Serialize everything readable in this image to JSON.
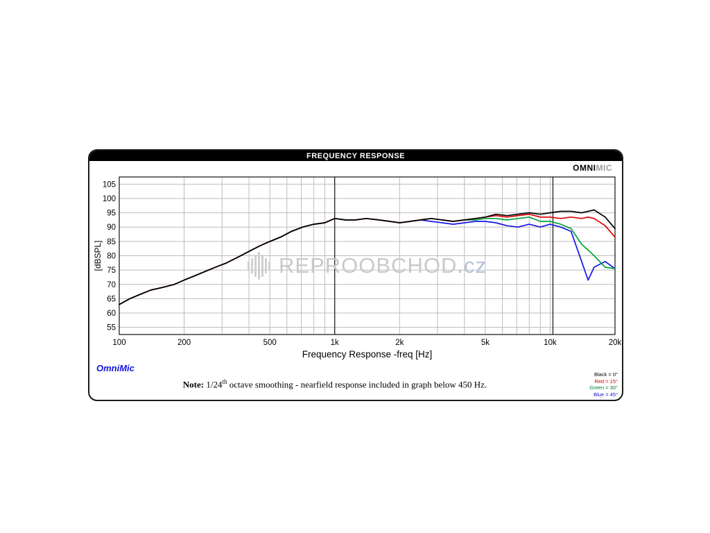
{
  "panel": {
    "title": "FREQUENCY RESPONSE",
    "brand": {
      "part1": "OMNI",
      "part2": "MIC"
    },
    "footer": {
      "app_name": "OmniMic",
      "note_label": "Note:",
      "note_pre": " 1/24",
      "note_sup": "th",
      "note_post": " octave smoothing - nearfield response included in graph below 450 Hz."
    }
  },
  "watermark": {
    "text": "REPROOBCHOD",
    "suffix": ".cz"
  },
  "chart_data": {
    "type": "line",
    "title": "FREQUENCY RESPONSE",
    "xlabel": "Frequency Response -freq [Hz]",
    "ylabel": "[dBSPL]",
    "x_scale": "log",
    "xlim": [
      100,
      20000
    ],
    "ylim": [
      52.5,
      107.5
    ],
    "grid": true,
    "legend_position": "bottom-right",
    "y_ticks": [
      55,
      60,
      65,
      70,
      75,
      80,
      85,
      90,
      95,
      100,
      105
    ],
    "x_ticks": [
      {
        "value": 100,
        "label": "100"
      },
      {
        "value": 200,
        "label": "200"
      },
      {
        "value": 500,
        "label": "500"
      },
      {
        "value": 1000,
        "label": "1k"
      },
      {
        "value": 2000,
        "label": "2k"
      },
      {
        "value": 5000,
        "label": "5k"
      },
      {
        "value": 10000,
        "label": "10k"
      },
      {
        "value": 20000,
        "label": "20k"
      }
    ],
    "x_minor_gridlines": [
      100,
      200,
      300,
      400,
      500,
      600,
      700,
      800,
      900,
      1000,
      2000,
      3000,
      4000,
      5000,
      6000,
      7000,
      8000,
      9000,
      10000,
      20000
    ],
    "cursor_lines": [
      1000,
      10300
    ],
    "frequencies": [
      100,
      112,
      125,
      140,
      160,
      180,
      200,
      224,
      250,
      280,
      315,
      355,
      400,
      450,
      500,
      560,
      630,
      710,
      800,
      900,
      1000,
      1120,
      1250,
      1400,
      1600,
      1800,
      2000,
      2240,
      2500,
      2800,
      3150,
      3550,
      4000,
      4500,
      5000,
      5600,
      6300,
      7100,
      8000,
      9000,
      10000,
      11200,
      12500,
      14000,
      15000,
      16000,
      18000,
      20000
    ],
    "series": [
      {
        "name": "Black = 0°",
        "angle": "0°",
        "color": "#000000",
        "values": [
          63.0,
          65.0,
          66.5,
          68.0,
          69.0,
          70.0,
          71.5,
          73.0,
          74.5,
          76.0,
          77.5,
          79.5,
          81.5,
          83.5,
          85.0,
          86.5,
          88.5,
          90.0,
          91.0,
          91.5,
          93.0,
          92.5,
          92.5,
          93.0,
          92.5,
          92.0,
          91.5,
          92.0,
          92.5,
          93.0,
          92.5,
          92.0,
          92.5,
          93.0,
          93.5,
          94.5,
          94.0,
          94.5,
          95.0,
          94.5,
          95.0,
          95.5,
          95.5,
          95.0,
          95.5,
          96.0,
          93.5,
          89.5
        ]
      },
      {
        "name": "Red = 15°",
        "angle": "15°",
        "color": "#dd0000",
        "values": [
          63.0,
          65.0,
          66.5,
          68.0,
          69.0,
          70.0,
          71.5,
          73.0,
          74.5,
          76.0,
          77.5,
          79.5,
          81.5,
          83.5,
          85.0,
          86.5,
          88.5,
          90.0,
          91.0,
          91.5,
          93.0,
          92.5,
          92.5,
          93.0,
          92.5,
          92.0,
          91.5,
          92.0,
          92.5,
          93.0,
          92.5,
          92.0,
          92.5,
          93.0,
          93.5,
          94.0,
          93.5,
          94.0,
          94.5,
          93.5,
          93.5,
          93.0,
          93.5,
          93.0,
          93.5,
          93.0,
          90.5,
          86.5
        ]
      },
      {
        "name": "Green = 30°",
        "angle": "30°",
        "color": "#00a33c",
        "values": [
          63.0,
          65.0,
          66.5,
          68.0,
          69.0,
          70.0,
          71.5,
          73.0,
          74.5,
          76.0,
          77.5,
          79.5,
          81.5,
          83.5,
          85.0,
          86.5,
          88.5,
          90.0,
          91.0,
          91.5,
          93.0,
          92.5,
          92.5,
          93.0,
          92.5,
          92.0,
          91.5,
          92.0,
          92.5,
          93.0,
          92.5,
          92.0,
          92.5,
          92.5,
          93.0,
          93.0,
          92.5,
          93.0,
          93.5,
          92.0,
          92.0,
          91.0,
          89.5,
          84.0,
          82.0,
          80.0,
          76.0,
          75.5
        ]
      },
      {
        "name": "Blue = 45°",
        "angle": "45°",
        "color": "#1414e6",
        "values": [
          63.0,
          65.0,
          66.5,
          68.0,
          69.0,
          70.0,
          71.5,
          73.0,
          74.5,
          76.0,
          77.5,
          79.5,
          81.5,
          83.5,
          85.0,
          86.5,
          88.5,
          90.0,
          91.0,
          91.5,
          93.0,
          92.5,
          92.5,
          93.0,
          92.5,
          92.0,
          91.5,
          92.0,
          92.5,
          92.0,
          91.5,
          91.0,
          91.5,
          92.0,
          92.0,
          91.5,
          90.5,
          90.0,
          91.0,
          90.0,
          91.0,
          90.0,
          88.5,
          78.0,
          71.5,
          76.0,
          78.0,
          75.5
        ]
      }
    ],
    "legend": [
      {
        "label": "Black = 0°",
        "color": "#000000"
      },
      {
        "label": "Red = 15°",
        "color": "#cc0000"
      },
      {
        "label": "Green = 30°",
        "color": "#00802f"
      },
      {
        "label": "Blue = 45°",
        "color": "#1212cc"
      }
    ]
  }
}
